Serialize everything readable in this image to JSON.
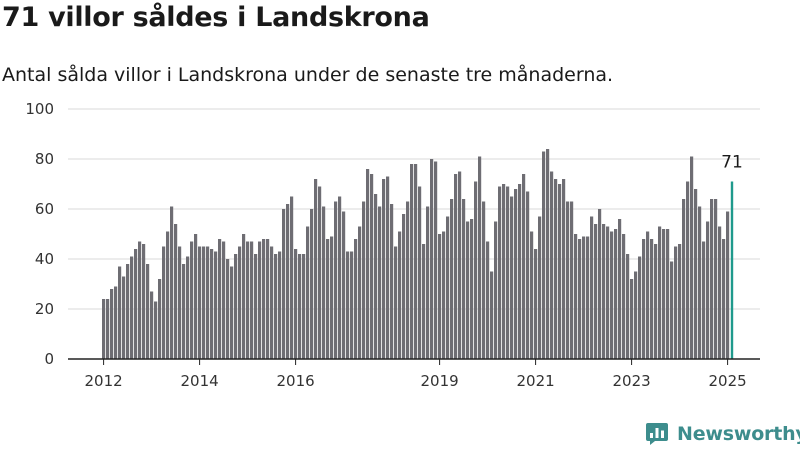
{
  "header": {
    "title": "71 villor såldes i Landskrona",
    "subtitle": "Antal sålda villor i Landskrona under de senaste tre månaderna."
  },
  "brand": {
    "name": "Newsworthy",
    "icon": "newsworthy-logo-icon",
    "color": "#3d8d8d"
  },
  "colors": {
    "bar": "#6e6d73",
    "highlight": "#1f9a8c",
    "grid": "#d9d9d9",
    "axis": "#222222"
  },
  "chart_data": {
    "type": "bar",
    "title": "71 villor såldes i Landskrona",
    "subtitle": "Antal sålda villor i Landskrona under de senaste tre månaderna.",
    "xlabel": "",
    "ylabel": "",
    "ylim": [
      0,
      100
    ],
    "yticks": [
      0,
      20,
      40,
      60,
      80,
      100
    ],
    "xticks": [
      {
        "label": "2012",
        "x": "2012-01"
      },
      {
        "label": "2014",
        "x": "2014-01"
      },
      {
        "label": "2016",
        "x": "2016-01"
      },
      {
        "label": "2019",
        "x": "2019-01"
      },
      {
        "label": "2021",
        "x": "2021-01"
      },
      {
        "label": "2023",
        "x": "2023-01"
      },
      {
        "label": "2025",
        "x": "2025-01"
      }
    ],
    "grid": true,
    "legend": "none",
    "x_start": "2012-01",
    "x_end": "2025-03",
    "values": [
      24,
      24,
      28,
      29,
      37,
      33,
      38,
      41,
      44,
      47,
      46,
      38,
      27,
      23,
      32,
      45,
      51,
      61,
      54,
      45,
      38,
      41,
      47,
      50,
      45,
      45,
      45,
      44,
      43,
      48,
      47,
      40,
      37,
      42,
      45,
      50,
      47,
      47,
      42,
      47,
      48,
      48,
      45,
      42,
      43,
      60,
      62,
      65,
      44,
      42,
      42,
      53,
      60,
      72,
      69,
      61,
      48,
      49,
      63,
      65,
      59,
      43,
      43,
      48,
      53,
      63,
      76,
      74,
      66,
      61,
      72,
      73,
      62,
      45,
      51,
      58,
      63,
      78,
      78,
      69,
      46,
      61,
      80,
      79,
      50,
      51,
      57,
      64,
      74,
      75,
      64,
      55,
      56,
      71,
      81,
      63,
      47,
      35,
      55,
      69,
      70,
      69,
      65,
      68,
      70,
      74,
      67,
      51,
      44,
      57,
      83,
      84,
      75,
      72,
      70,
      72,
      63,
      63,
      50,
      48,
      49,
      49,
      57,
      54,
      60,
      54,
      53,
      51,
      52,
      56,
      50,
      42,
      32,
      35,
      41,
      48,
      51,
      48,
      46,
      53,
      52,
      52,
      39,
      45,
      46,
      64,
      71,
      81,
      68,
      61,
      47,
      55,
      64,
      64,
      53,
      48,
      59,
      71
    ],
    "highlight_last": true,
    "annotation": {
      "text": "71",
      "target": "last"
    }
  }
}
